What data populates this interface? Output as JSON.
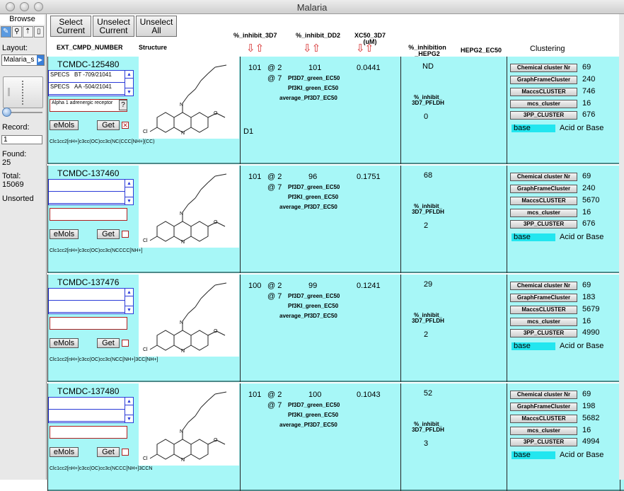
{
  "window": {
    "title": "Malaria"
  },
  "left": {
    "mode_label": "Browse",
    "tools": [
      {
        "icon": "pencil-icon",
        "glyph": "✎"
      },
      {
        "icon": "magnifier-icon",
        "glyph": "⚲"
      },
      {
        "icon": "sort-icon",
        "glyph": "⇡"
      },
      {
        "icon": "page-icon",
        "glyph": "▯"
      }
    ],
    "layout_label": "Layout:",
    "layout_value": "Malaria_s",
    "record_label": "Record:",
    "record_value": "1",
    "found_label": "Found:",
    "found_value": "25",
    "total_label": "Total:",
    "total_value": "15069",
    "sort_status": "Unsorted"
  },
  "toolbar": {
    "select_current": [
      "Select",
      "Current"
    ],
    "unselect_current": [
      "Unselect",
      "Current"
    ],
    "unselect_all": [
      "Unselect",
      "All"
    ]
  },
  "headers": {
    "cmpd": "EXT_CMPD_NUMBER",
    "structure": "Structure",
    "inhibit_3d7": "%_inhibit_3D7",
    "inhibit_dd2": "%_inhibit_DD2",
    "xc50_1": "XC50_3D7",
    "xc50_2": "(uM)",
    "inhibition_hepg2_1": "%_inhibition",
    "inhibition_hepg2_2": "_HEPG2",
    "hepg2_ec50": "HEPG2_EC50",
    "clustering": "Clustering"
  },
  "labels": {
    "at2": "@ 2",
    "at7": "@ 7",
    "green_3d7": "Pf3D7_green_EC50",
    "green_ki": "Pf3KI_green_EC50",
    "avg": "average_Pf3D7_EC50",
    "pfldh_1": "%_inhibit_",
    "pfldh_2": "3D7_PFLDH",
    "emols": "eMols",
    "get": "Get",
    "acid_or_base": "Acid or Base",
    "cluster_names": [
      "Chemical cluster Nr",
      "GraphFrameCluster",
      "MaccsCLUSTER",
      "mcs_cluster",
      "3PP_CLUSTER"
    ]
  },
  "records": [
    {
      "cmpd": "TCMDC-125480",
      "inhibit_3d7": "101",
      "inhibit_dd2": "101",
      "xc50": "0.0441",
      "hepg2": "ND",
      "pfldh": "0",
      "d1": "D1",
      "portal": [
        [
          "SPECS",
          "BT -709/21041"
        ],
        [
          "SPECS",
          "AA -504/21041"
        ]
      ],
      "target": "Alpha 1 adrenergic receptor",
      "checked": true,
      "smiles": "Clc1cc2[nH+]c3cc(OC)cc3c(NC(CCC[NH+](CC)",
      "clusters": [
        "69",
        "240",
        "746",
        "16",
        "676"
      ],
      "acid_base": "base"
    },
    {
      "cmpd": "TCMDC-137460",
      "inhibit_3d7": "101",
      "inhibit_dd2": "96",
      "xc50": "0.1751",
      "hepg2": "68",
      "pfldh": "2",
      "d1": "",
      "portal": [
        [
          "",
          ""
        ],
        [
          "",
          ""
        ]
      ],
      "target": "",
      "checked": false,
      "smiles": "Clc1cc2[nH+]c3cc(OC)cc3c(NCCCC[NH+]",
      "clusters": [
        "69",
        "240",
        "5670",
        "16",
        "676"
      ],
      "acid_base": "base"
    },
    {
      "cmpd": "TCMDC-137476",
      "inhibit_3d7": "100",
      "inhibit_dd2": "99",
      "xc50": "0.1241",
      "hepg2": "29",
      "pfldh": "2",
      "d1": "",
      "portal": [
        [
          "",
          ""
        ],
        [
          "",
          ""
        ]
      ],
      "target": "",
      "checked": false,
      "smiles": "Clc1cc2[nH+]c3cc(OC)cc3c(NCC[NH+]3CC[NH+]",
      "clusters": [
        "69",
        "183",
        "5679",
        "16",
        "4990"
      ],
      "acid_base": "base"
    },
    {
      "cmpd": "TCMDC-137480",
      "inhibit_3d7": "101",
      "inhibit_dd2": "100",
      "xc50": "0.1043",
      "hepg2": "52",
      "pfldh": "3",
      "d1": "",
      "portal": [
        [
          "",
          ""
        ],
        [
          "",
          ""
        ]
      ],
      "target": "",
      "checked": false,
      "smiles": "Clc1cc2[nH+]c3cc(OC)cc3c(NCCC[NH+]3CCN",
      "clusters": [
        "69",
        "198",
        "5682",
        "16",
        "4994"
      ],
      "acid_base": "base"
    }
  ]
}
